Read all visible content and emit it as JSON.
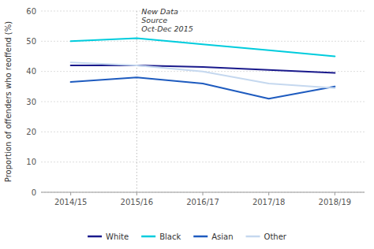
{
  "chart_data": {
    "type": "line",
    "y_label": "Proportion of offenders who reoffend (%)",
    "categories": [
      "2014/15",
      "2015/16",
      "2016/17",
      "2017/18",
      "2018/19"
    ],
    "series": [
      {
        "name": "White",
        "color": "#1a1a8c",
        "values": [
          42.0,
          42.0,
          41.5,
          40.5,
          39.5
        ]
      },
      {
        "name": "Black",
        "color": "#00ccdd",
        "values": [
          50.0,
          51.0,
          49.0,
          47.0,
          45.0
        ]
      },
      {
        "name": "Asian",
        "color": "#1e5bbf",
        "values": [
          36.5,
          38.0,
          36.0,
          31.0,
          35.0
        ]
      },
      {
        "name": "Other",
        "color": "#c5d8ef",
        "values": [
          43.0,
          42.0,
          40.0,
          36.0,
          34.5
        ]
      }
    ],
    "annotations": [
      {
        "text": "New Data\nSource\nOct-Dec 2015",
        "x": "2015/16"
      }
    ],
    "ylim": [
      0,
      60
    ],
    "yticks": [
      0,
      10,
      20,
      30,
      40,
      50,
      60
    ],
    "grid": true,
    "legend": "bottom"
  }
}
